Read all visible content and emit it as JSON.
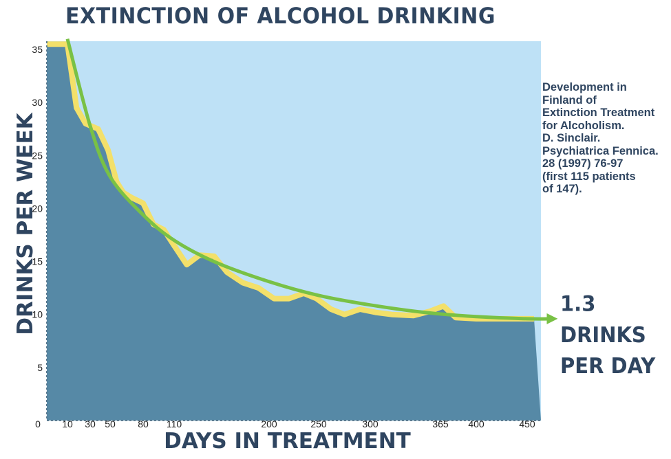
{
  "chart_data": {
    "type": "area",
    "title": "EXTINCTION OF ALCOHOL DRINKING",
    "xlabel": "DAYS IN TREATMENT",
    "ylabel": "DRINKS PER WEEK",
    "ylim": [
      0,
      36
    ],
    "yticks": [
      5,
      10,
      15,
      20,
      25,
      30,
      35
    ],
    "xticks": [
      {
        "value": 0,
        "label": "0"
      },
      {
        "value": 10,
        "label": "10"
      },
      {
        "value": 30,
        "label": "30"
      },
      {
        "value": 50,
        "label": "50"
      },
      {
        "value": 80,
        "label": "80"
      },
      {
        "value": 110,
        "label": "110"
      },
      {
        "value": 200,
        "label": "200"
      },
      {
        "value": 250,
        "label": "250"
      },
      {
        "value": 300,
        "label": "300"
      },
      {
        "value": 365,
        "label": "365"
      },
      {
        "value": 400,
        "label": "400"
      },
      {
        "value": 450,
        "label": "450"
      }
    ],
    "series": [
      {
        "x": [
          0,
          10,
          18,
          26,
          38,
          48,
          56,
          62,
          70,
          80,
          90,
          100,
          110,
          122,
          134,
          148,
          160,
          175,
          190,
          205,
          220,
          235,
          248,
          262,
          275,
          290,
          305,
          320,
          340,
          355,
          368,
          380,
          400,
          430,
          460
        ],
        "values": [
          35.5,
          35.5,
          29.5,
          28.0,
          27.5,
          25.5,
          22.5,
          21.5,
          21.0,
          20.5,
          18.5,
          18.0,
          16.5,
          14.7,
          15.6,
          15.5,
          14.0,
          13.0,
          12.5,
          11.5,
          11.5,
          12.0,
          11.5,
          10.5,
          10.0,
          10.5,
          10.2,
          10.0,
          9.9,
          10.3,
          10.8,
          9.7,
          9.6,
          9.6,
          9.6
        ]
      }
    ],
    "trend": {
      "x": [
        10,
        30,
        50,
        80,
        110,
        150,
        200,
        250,
        300,
        350,
        400,
        450,
        488
      ],
      "values": [
        36.0,
        27.8,
        23.0,
        19.4,
        17.0,
        14.9,
        13.1,
        11.8,
        10.9,
        10.2,
        9.8,
        9.6,
        9.6
      ]
    },
    "colors": {
      "background": "#bee1f6",
      "area": "#5689a6",
      "observed_line": "#f3e06a",
      "trend_line": "#79c145",
      "text": "#2f4560"
    }
  },
  "annotation": {
    "citation": "Development in\nFinland of\nExtinction Treatment\nfor Alcoholism.\nD. Sinclair.\nPsychiatrica Fennica.\n28 (1997) 76-97\n(first 115 patients\nof 147).",
    "callout": "1.3 DRINKS\nPER DAY"
  }
}
